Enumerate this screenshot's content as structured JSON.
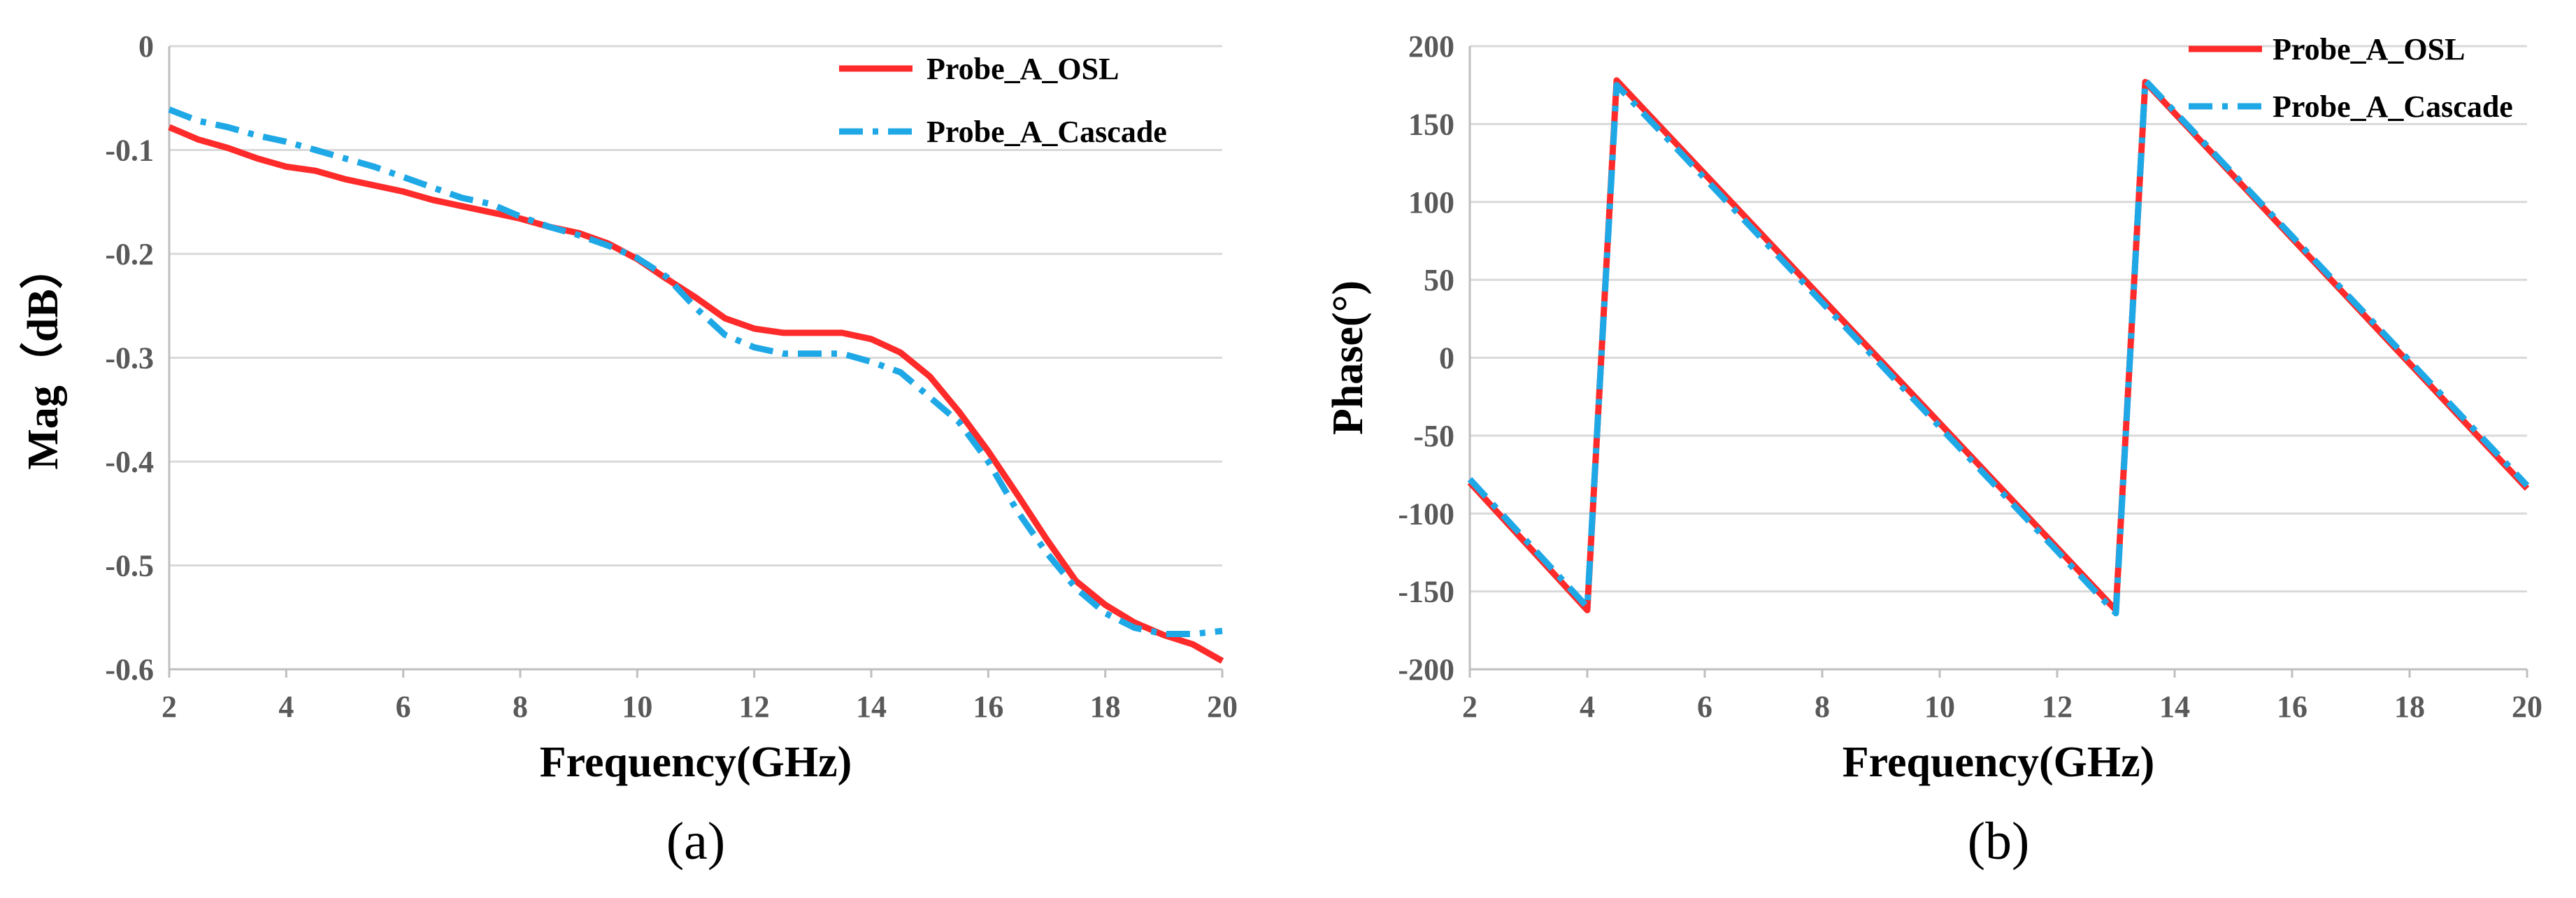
{
  "chart_data": [
    {
      "type": "line",
      "panel_label": "(a)",
      "xlabel": "Frequency(GHz)",
      "ylabel": "Mag（dB）",
      "xlim": [
        2,
        20
      ],
      "ylim": [
        -0.6,
        0
      ],
      "xticks": [
        2,
        4,
        6,
        8,
        10,
        12,
        14,
        16,
        18,
        20
      ],
      "yticks": [
        0,
        -0.1,
        -0.2,
        -0.3,
        -0.4,
        -0.5,
        -0.6
      ],
      "ytick_labels": [
        "0",
        "-0.1",
        "-0.2",
        "-0.3",
        "-0.4",
        "-0.5",
        "-0.6"
      ],
      "grid": "horizontal",
      "legend_position": "top-right",
      "series": [
        {
          "name": "Probe_A_OSL",
          "color": "#ff2a2a",
          "style": "solid",
          "x": [
            2,
            2.5,
            3,
            3.5,
            4,
            4.5,
            5,
            5.5,
            6,
            6.5,
            7,
            7.5,
            8,
            8.5,
            9,
            9.5,
            10,
            10.5,
            11,
            11.5,
            12,
            12.5,
            13,
            13.5,
            14,
            14.5,
            15,
            15.5,
            16,
            16.5,
            17,
            17.5,
            18,
            18.5,
            19,
            19.5,
            20
          ],
          "y": [
            -0.078,
            -0.09,
            -0.098,
            -0.108,
            -0.116,
            -0.12,
            -0.128,
            -0.134,
            -0.14,
            -0.148,
            -0.154,
            -0.16,
            -0.166,
            -0.174,
            -0.18,
            -0.19,
            -0.205,
            -0.224,
            -0.242,
            -0.262,
            -0.272,
            -0.276,
            -0.276,
            -0.276,
            -0.282,
            -0.295,
            -0.318,
            -0.352,
            -0.39,
            -0.432,
            -0.475,
            -0.515,
            -0.538,
            -0.555,
            -0.567,
            -0.576,
            -0.592
          ]
        },
        {
          "name": "Probe_A_Cascade",
          "color": "#1fa8e6",
          "style": "dashdot",
          "x": [
            2,
            2.5,
            3,
            3.5,
            4,
            4.5,
            5,
            5.5,
            6,
            6.5,
            7,
            7.5,
            8,
            8.5,
            9,
            9.5,
            10,
            10.5,
            11,
            11.5,
            12,
            12.5,
            13,
            13.5,
            14,
            14.5,
            15,
            15.5,
            16,
            16.5,
            17,
            17.5,
            18,
            18.5,
            19,
            19.5,
            20
          ],
          "y": [
            -0.061,
            -0.072,
            -0.078,
            -0.086,
            -0.092,
            -0.1,
            -0.108,
            -0.116,
            -0.126,
            -0.136,
            -0.146,
            -0.152,
            -0.164,
            -0.174,
            -0.182,
            -0.192,
            -0.204,
            -0.222,
            -0.252,
            -0.278,
            -0.29,
            -0.296,
            -0.296,
            -0.296,
            -0.304,
            -0.314,
            -0.338,
            -0.362,
            -0.4,
            -0.448,
            -0.488,
            -0.522,
            -0.546,
            -0.56,
            -0.566,
            -0.566,
            -0.563
          ]
        }
      ]
    },
    {
      "type": "line",
      "panel_label": "(b)",
      "xlabel": "Frequency(GHz)",
      "ylabel": "Phase(°)",
      "xlim": [
        2,
        20
      ],
      "ylim": [
        -200,
        200
      ],
      "xticks": [
        2,
        4,
        6,
        8,
        10,
        12,
        14,
        16,
        18,
        20
      ],
      "yticks": [
        200,
        150,
        100,
        50,
        0,
        -50,
        -100,
        -150,
        -200
      ],
      "ytick_labels": [
        "200",
        "150",
        "100",
        "50",
        "0",
        "-50",
        "-100",
        "-150",
        "-200"
      ],
      "grid": "horizontal",
      "legend_position": "top-right",
      "series": [
        {
          "name": "Probe_A_OSL",
          "color": "#ff2a2a",
          "style": "solid",
          "x": [
            2,
            4,
            4.5,
            13,
            13.5,
            20
          ],
          "y": [
            -80,
            -162,
            178,
            -162,
            177,
            -84
          ]
        },
        {
          "name": "Probe_A_Cascade",
          "color": "#1fa8e6",
          "style": "dashdot",
          "x": [
            2,
            4,
            4.5,
            13,
            13.5,
            20
          ],
          "y": [
            -78,
            -160,
            175,
            -164,
            178,
            -82
          ]
        }
      ]
    }
  ]
}
